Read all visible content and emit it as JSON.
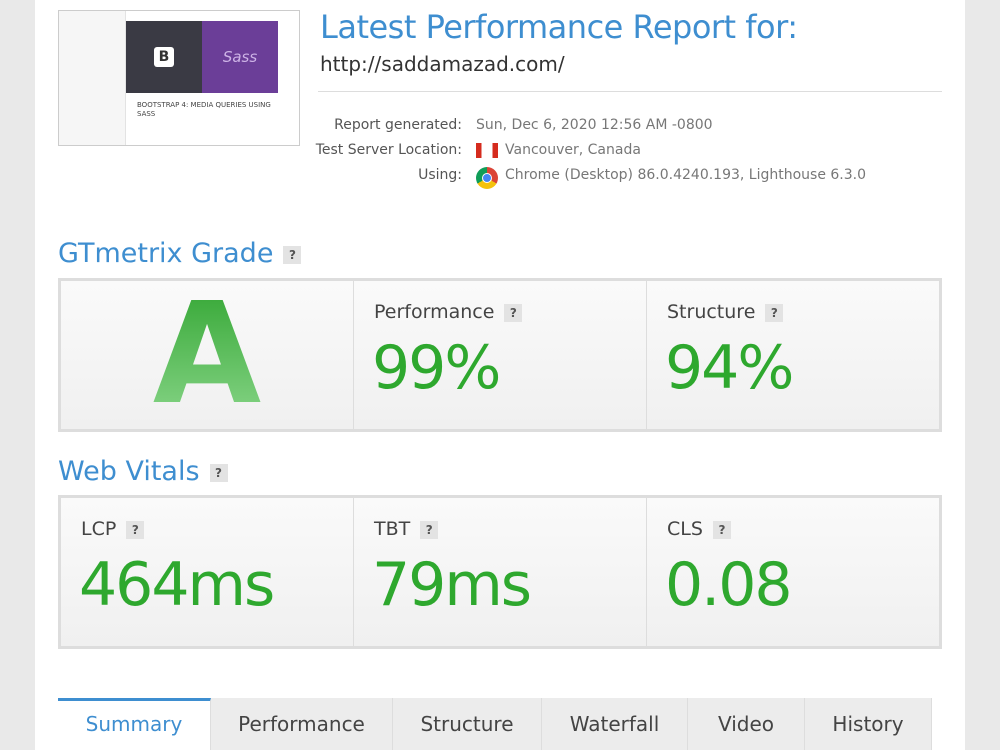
{
  "header": {
    "title": "Latest Performance Report for:",
    "url": "http://saddamazad.com/"
  },
  "thumbnail": {
    "logo": "B",
    "brand": "Sass",
    "caption": "BOOTSTRAP 4: MEDIA QUERIES USING SASS"
  },
  "details": [
    {
      "label": "Report generated:",
      "value": "Sun, Dec 6, 2020 12:56 AM -0800"
    },
    {
      "label": "Test Server Location:",
      "value": "Vancouver, Canada"
    },
    {
      "label": "Using:",
      "value": "Chrome (Desktop) 86.0.4240.193, Lighthouse 6.3.0"
    }
  ],
  "help": "?",
  "grade_section": {
    "title": "GTmetrix Grade",
    "grade": "A",
    "metrics": [
      {
        "label": "Performance",
        "value": "99%"
      },
      {
        "label": "Structure",
        "value": "94%"
      }
    ]
  },
  "vitals_section": {
    "title": "Web Vitals",
    "metrics": [
      {
        "label": "LCP",
        "value": "464ms"
      },
      {
        "label": "TBT",
        "value": "79ms"
      },
      {
        "label": "CLS",
        "value": "0.08"
      }
    ]
  },
  "tabs": [
    "Summary",
    "Performance",
    "Structure",
    "Waterfall",
    "Video",
    "History"
  ]
}
